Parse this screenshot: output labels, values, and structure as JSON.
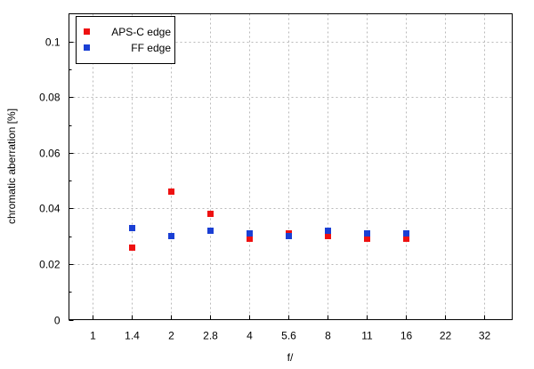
{
  "chart_data": {
    "type": "scatter",
    "title": "",
    "xlabel": "f/",
    "ylabel": "chromatic aberration [%]",
    "categories": [
      "1",
      "1.4",
      "2",
      "2.8",
      "4",
      "5.6",
      "8",
      "11",
      "16",
      "22",
      "32"
    ],
    "ylim": [
      0,
      0.11
    ],
    "y_ticks": [
      {
        "value": 0,
        "label": "0"
      },
      {
        "value": 0.02,
        "label": "0.02"
      },
      {
        "value": 0.04,
        "label": "0.04"
      },
      {
        "value": 0.06,
        "label": "0.06"
      },
      {
        "value": 0.08,
        "label": "0.08"
      },
      {
        "value": 0.1,
        "label": "0.1"
      }
    ],
    "grid": true,
    "legend_position": "top-left",
    "series": [
      {
        "name": "APS-C edge",
        "color": "#ee1111",
        "points": [
          {
            "x": "1.4",
            "y": 0.026
          },
          {
            "x": "2",
            "y": 0.046
          },
          {
            "x": "2.8",
            "y": 0.038
          },
          {
            "x": "4",
            "y": 0.029
          },
          {
            "x": "5.6",
            "y": 0.031
          },
          {
            "x": "8",
            "y": 0.03
          },
          {
            "x": "11",
            "y": 0.029
          },
          {
            "x": "16",
            "y": 0.029
          }
        ]
      },
      {
        "name": "FF edge",
        "color": "#1a3fd4",
        "points": [
          {
            "x": "1.4",
            "y": 0.033
          },
          {
            "x": "2",
            "y": 0.03
          },
          {
            "x": "2.8",
            "y": 0.032
          },
          {
            "x": "4",
            "y": 0.031
          },
          {
            "x": "5.6",
            "y": 0.03
          },
          {
            "x": "8",
            "y": 0.032
          },
          {
            "x": "11",
            "y": 0.031
          },
          {
            "x": "16",
            "y": 0.031
          }
        ]
      }
    ]
  }
}
